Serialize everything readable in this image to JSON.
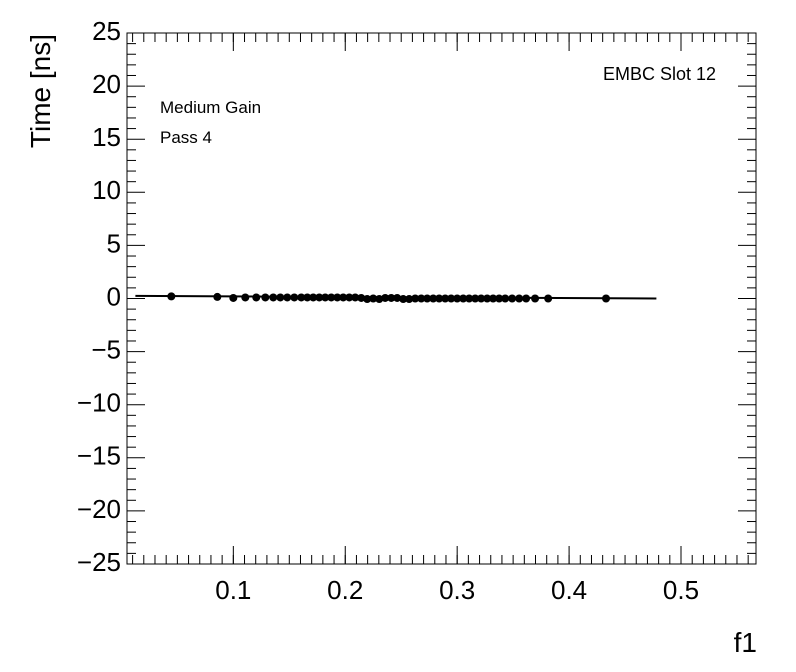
{
  "chart_data": {
    "type": "scatter",
    "annotations": [
      "EMBC Slot 12",
      "Medium Gain",
      "Pass 4"
    ],
    "ylabel": "Time [ns]",
    "xlabel": "f1",
    "color": "#000000",
    "x": [
      0.0446,
      0.0857,
      0.1,
      0.1107,
      0.1205,
      0.1286,
      0.1357,
      0.142,
      0.1482,
      0.1545,
      0.1607,
      0.1661,
      0.1714,
      0.1768,
      0.1821,
      0.1875,
      0.1929,
      0.1982,
      0.2036,
      0.2089,
      0.2143,
      0.2196,
      0.225,
      0.2304,
      0.2357,
      0.2411,
      0.2464,
      0.2518,
      0.2571,
      0.2625,
      0.2679,
      0.2732,
      0.2786,
      0.2839,
      0.2893,
      0.2946,
      0.3,
      0.3054,
      0.3107,
      0.3161,
      0.3214,
      0.3268,
      0.3321,
      0.3375,
      0.3429,
      0.3491,
      0.3554,
      0.3616,
      0.3696,
      0.3813,
      0.433
    ],
    "values": [
      0.2,
      0.15,
      0.05,
      0.1,
      0.1,
      0.1,
      0.1,
      0.1,
      0.1,
      0.1,
      0.1,
      0.1,
      0.1,
      0.1,
      0.1,
      0.1,
      0.1,
      0.1,
      0.1,
      0.1,
      0.05,
      -0.05,
      0.0,
      -0.05,
      0.05,
      0.05,
      0.05,
      -0.05,
      -0.05,
      0.0,
      0.0,
      0.0,
      0.0,
      0.0,
      0.0,
      0.0,
      0.0,
      0.0,
      0.0,
      0.0,
      0.0,
      0.0,
      0.0,
      0.0,
      0.0,
      0.0,
      0.0,
      0.0,
      0.0,
      0.0,
      0.0
    ],
    "fit": {
      "x": [
        0.0125,
        0.478
      ],
      "values": [
        0.25,
        0.0
      ]
    },
    "xlim": [
      0.005,
      0.567
    ],
    "ylim": [
      -25,
      25
    ],
    "xticks": [
      0.1,
      0.2,
      0.3,
      0.4,
      0.5
    ],
    "yticks": [
      {
        "value": -25,
        "label": "−25"
      },
      {
        "value": -20,
        "label": "−20"
      },
      {
        "value": -15,
        "label": "−15"
      },
      {
        "value": -10,
        "label": "−10"
      },
      {
        "value": -5,
        "label": "−5"
      },
      0,
      5,
      10,
      15,
      20,
      25
    ]
  }
}
